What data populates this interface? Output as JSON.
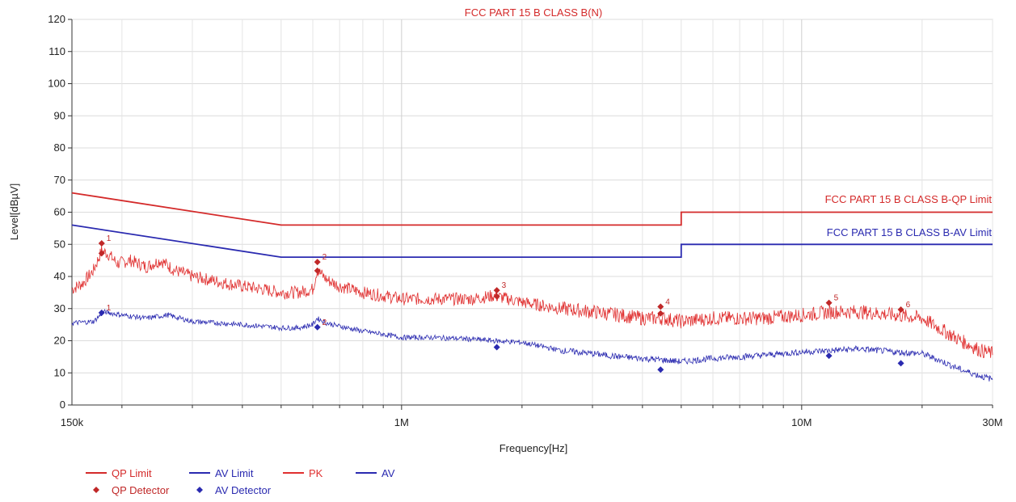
{
  "chart_data": {
    "type": "line",
    "title": "FCC PART 15 B CLASS B(N)",
    "xlabel": "Frequency[Hz]",
    "ylabel": "Level[dBµV]",
    "x_scale": "log",
    "xlim": [
      150000,
      30000000
    ],
    "ylim": [
      0,
      120
    ],
    "grid": true,
    "x_ticks": [
      {
        "value": 150000,
        "label": "150k"
      },
      {
        "value": 1000000,
        "label": "1M"
      },
      {
        "value": 10000000,
        "label": "10M"
      },
      {
        "value": 30000000,
        "label": "30M"
      }
    ],
    "y_ticks": [
      0,
      10,
      20,
      30,
      40,
      50,
      60,
      70,
      80,
      90,
      100,
      110,
      120
    ],
    "limit_labels": {
      "qp": "FCC PART 15 B CLASS B-QP Limit",
      "av": "FCC PART 15 B CLASS B-AV Limit"
    },
    "series": [
      {
        "name": "QP Limit",
        "color": "#d42a2a",
        "kind": "limit",
        "x": [
          150000,
          500000,
          500000,
          5000000,
          5000000,
          30000000
        ],
        "y": [
          66,
          56,
          56,
          56,
          60,
          60
        ]
      },
      {
        "name": "AV Limit",
        "color": "#2a2ab0",
        "kind": "limit",
        "x": [
          150000,
          500000,
          500000,
          5000000,
          5000000,
          30000000
        ],
        "y": [
          56,
          46,
          46,
          46,
          50,
          50
        ]
      },
      {
        "name": "PK",
        "color": "#e03030",
        "kind": "trace",
        "x": [
          150000,
          160000,
          170000,
          178000,
          185000,
          195000,
          210000,
          230000,
          250000,
          270000,
          300000,
          330000,
          360000,
          400000,
          450000,
          500000,
          550000,
          600000,
          615000,
          650000,
          700000,
          800000,
          900000,
          1000000,
          1200000,
          1500000,
          1700000,
          2000000,
          2500000,
          3000000,
          3500000,
          4000000,
          4500000,
          5000000,
          6000000,
          7000000,
          8000000,
          10000000,
          12000000,
          14000000,
          17000000,
          20000000,
          22000000,
          25000000,
          28000000,
          30000000
        ],
        "y": [
          36,
          38,
          42,
          48,
          47,
          44,
          45,
          43,
          45,
          42,
          40,
          39,
          38,
          37,
          36,
          35,
          35,
          36,
          42,
          39,
          37,
          35,
          34,
          33,
          33,
          33,
          34,
          32,
          30,
          29,
          28,
          27,
          27,
          26,
          27,
          27,
          27,
          28,
          29,
          29,
          28,
          27,
          24,
          20,
          17,
          16
        ]
      },
      {
        "name": "AV",
        "color": "#2a2ab0",
        "kind": "trace",
        "x": [
          150000,
          170000,
          180000,
          200000,
          230000,
          260000,
          300000,
          350000,
          400000,
          450000,
          500000,
          550000,
          600000,
          615000,
          650000,
          700000,
          800000,
          900000,
          1000000,
          1200000,
          1500000,
          1700000,
          2000000,
          2500000,
          3000000,
          3500000,
          4000000,
          4500000,
          5000000,
          6000000,
          7000000,
          8000000,
          10000000,
          12000000,
          14000000,
          17000000,
          20000000,
          22000000,
          25000000,
          28000000,
          30000000
        ],
        "y": [
          25.5,
          26,
          29,
          28,
          27,
          28,
          26,
          25.5,
          25,
          24.5,
          24,
          24,
          25,
          27,
          25.5,
          24.5,
          23,
          22,
          21,
          21,
          20.5,
          20,
          19.5,
          17,
          16,
          15,
          14.5,
          14,
          13.5,
          14.5,
          15,
          15.5,
          16.5,
          17,
          17.5,
          16.5,
          16,
          14,
          11,
          9,
          8
        ]
      }
    ],
    "qp_detector": {
      "name": "QP Detector",
      "color": "#c02828",
      "points": [
        {
          "x": 178000,
          "y": 50.3,
          "label": "1"
        },
        {
          "x": 178000,
          "y": 47.2,
          "label": ""
        },
        {
          "x": 616000,
          "y": 44.5,
          "label": "2"
        },
        {
          "x": 616000,
          "y": 41.8,
          "label": ""
        },
        {
          "x": 1730000,
          "y": 35.7,
          "label": "3"
        },
        {
          "x": 1730000,
          "y": 33.8,
          "label": ""
        },
        {
          "x": 4440000,
          "y": 30.6,
          "label": "4"
        },
        {
          "x": 4440000,
          "y": 28.5,
          "label": ""
        },
        {
          "x": 11700000,
          "y": 31.8,
          "label": "5"
        },
        {
          "x": 17700000,
          "y": 29.7,
          "label": "6"
        }
      ]
    },
    "av_detector": {
      "name": "AV Detector",
      "color": "#2a2ab0",
      "points": [
        {
          "x": 178000,
          "y": 28.7,
          "label": "1"
        },
        {
          "x": 616000,
          "y": 24.2,
          "label": "2"
        },
        {
          "x": 1730000,
          "y": 18.0,
          "label": ""
        },
        {
          "x": 4440000,
          "y": 11.0,
          "label": ""
        },
        {
          "x": 11700000,
          "y": 15.3,
          "label": ""
        },
        {
          "x": 17700000,
          "y": 13.0,
          "label": ""
        }
      ]
    },
    "legend": {
      "placement": "bottom-left",
      "entries": [
        {
          "label": "QP Limit",
          "color": "#d42a2a",
          "symbol": "line"
        },
        {
          "label": "AV Limit",
          "color": "#2a2ab0",
          "symbol": "line"
        },
        {
          "label": "PK",
          "color": "#e03030",
          "symbol": "line"
        },
        {
          "label": "AV",
          "color": "#2a2ab0",
          "symbol": "line"
        },
        {
          "label": "QP Detector",
          "color": "#c02828",
          "symbol": "diamond"
        },
        {
          "label": "AV Detector",
          "color": "#2a2ab0",
          "symbol": "diamond"
        }
      ]
    }
  }
}
